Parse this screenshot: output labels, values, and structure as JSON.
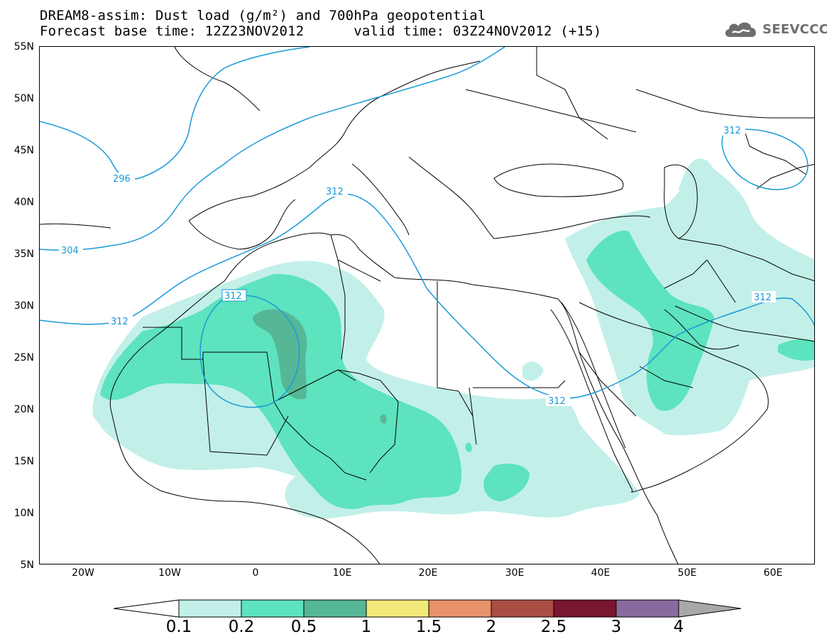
{
  "title": {
    "line1": "DREAM8-assim: Dust load (g/m²) and 700hPa geopotential",
    "line2": "Forecast base time: 12Z23NOV2012      valid time: 03Z24NOV2012 (+15)"
  },
  "logo": {
    "text": "SEEVCCC",
    "icon": "cloud-icon"
  },
  "axes": {
    "lat_labels": [
      "55N",
      "50N",
      "45N",
      "40N",
      "35N",
      "30N",
      "25N",
      "20N",
      "15N",
      "10N",
      "5N"
    ],
    "lon_labels": [
      "20W",
      "10W",
      "0",
      "10E",
      "20E",
      "30E",
      "40E",
      "50E",
      "60E"
    ]
  },
  "contours": {
    "color": "#1a9ad9",
    "labels": [
      "296",
      "304",
      "312",
      "312",
      "312",
      "312",
      "312",
      "312"
    ]
  },
  "colorbar": {
    "levels": [
      "0.1",
      "0.2",
      "0.5",
      "1",
      "1.5",
      "2",
      "2.5",
      "3",
      "4"
    ],
    "colors": [
      "#ffffff",
      "#c2f0e8",
      "#5de3bd",
      "#55b796",
      "#f2e97a",
      "#e7926a",
      "#aa4e44",
      "#7a1630",
      "#8a6a9e",
      "#a8a8a8"
    ]
  },
  "dust_colors": {
    "level_0_1": "#c2f0e8",
    "level_0_2": "#5de3bd",
    "level_0_5": "#55b796"
  }
}
